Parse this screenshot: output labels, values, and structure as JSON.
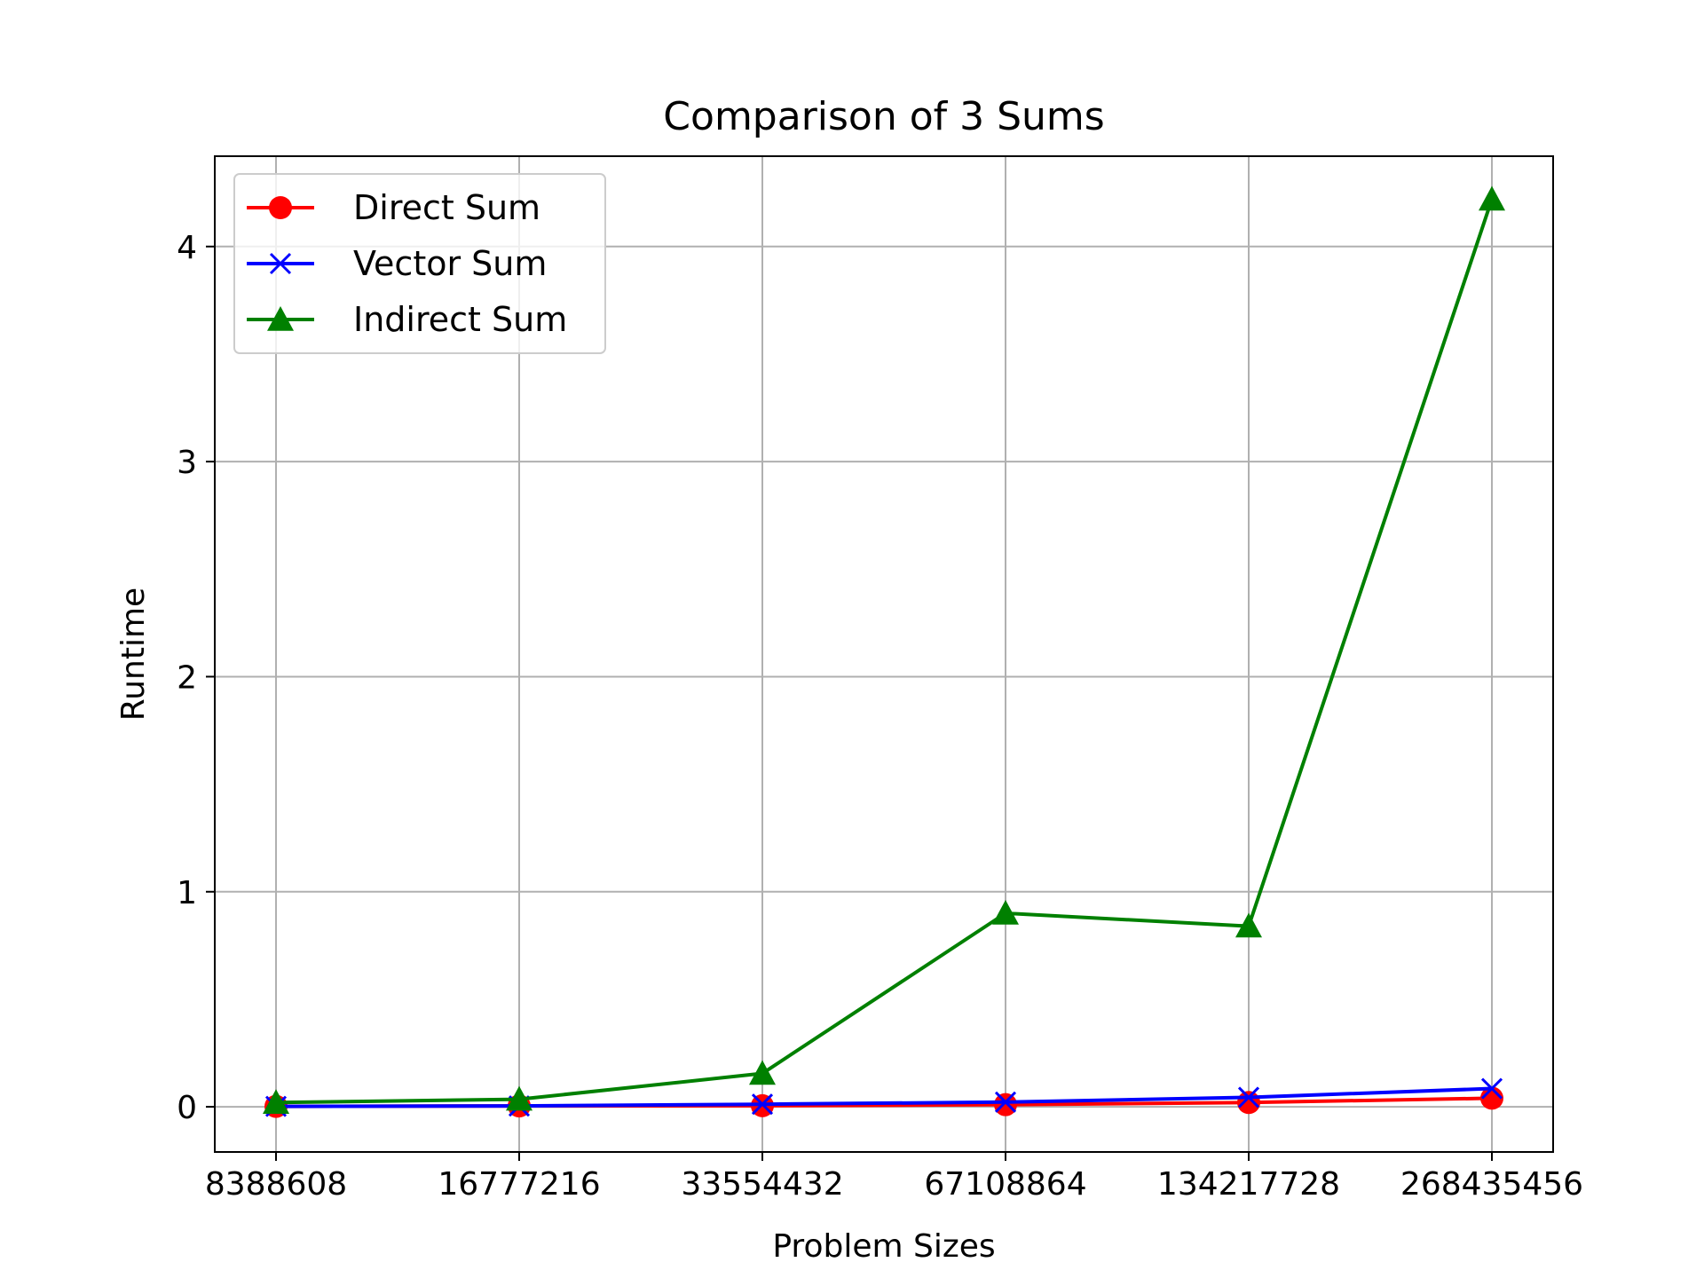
{
  "chart_data": {
    "type": "line",
    "title": "Comparison of 3 Sums",
    "xlabel": "Problem Sizes",
    "ylabel": "Runtime",
    "categories": [
      "8388608",
      "16777216",
      "33554432",
      "67108864",
      "134217728",
      "268435456"
    ],
    "ylim": [
      -0.21,
      4.42
    ],
    "yticks": [
      "0",
      "1",
      "2",
      "3",
      "4"
    ],
    "grid": true,
    "legend_position": "top-left",
    "series": [
      {
        "name": "Direct Sum",
        "color": "#ff0000",
        "marker": "circle",
        "values": [
          0.002,
          0.004,
          0.005,
          0.01,
          0.02,
          0.04
        ]
      },
      {
        "name": "Vector Sum",
        "color": "#0000ff",
        "marker": "x",
        "values": [
          0.002,
          0.004,
          0.012,
          0.022,
          0.044,
          0.085
        ]
      },
      {
        "name": "Indirect Sum",
        "color": "#008000",
        "marker": "triangle",
        "values": [
          0.02,
          0.035,
          0.155,
          0.9,
          0.84,
          4.22
        ]
      }
    ]
  }
}
